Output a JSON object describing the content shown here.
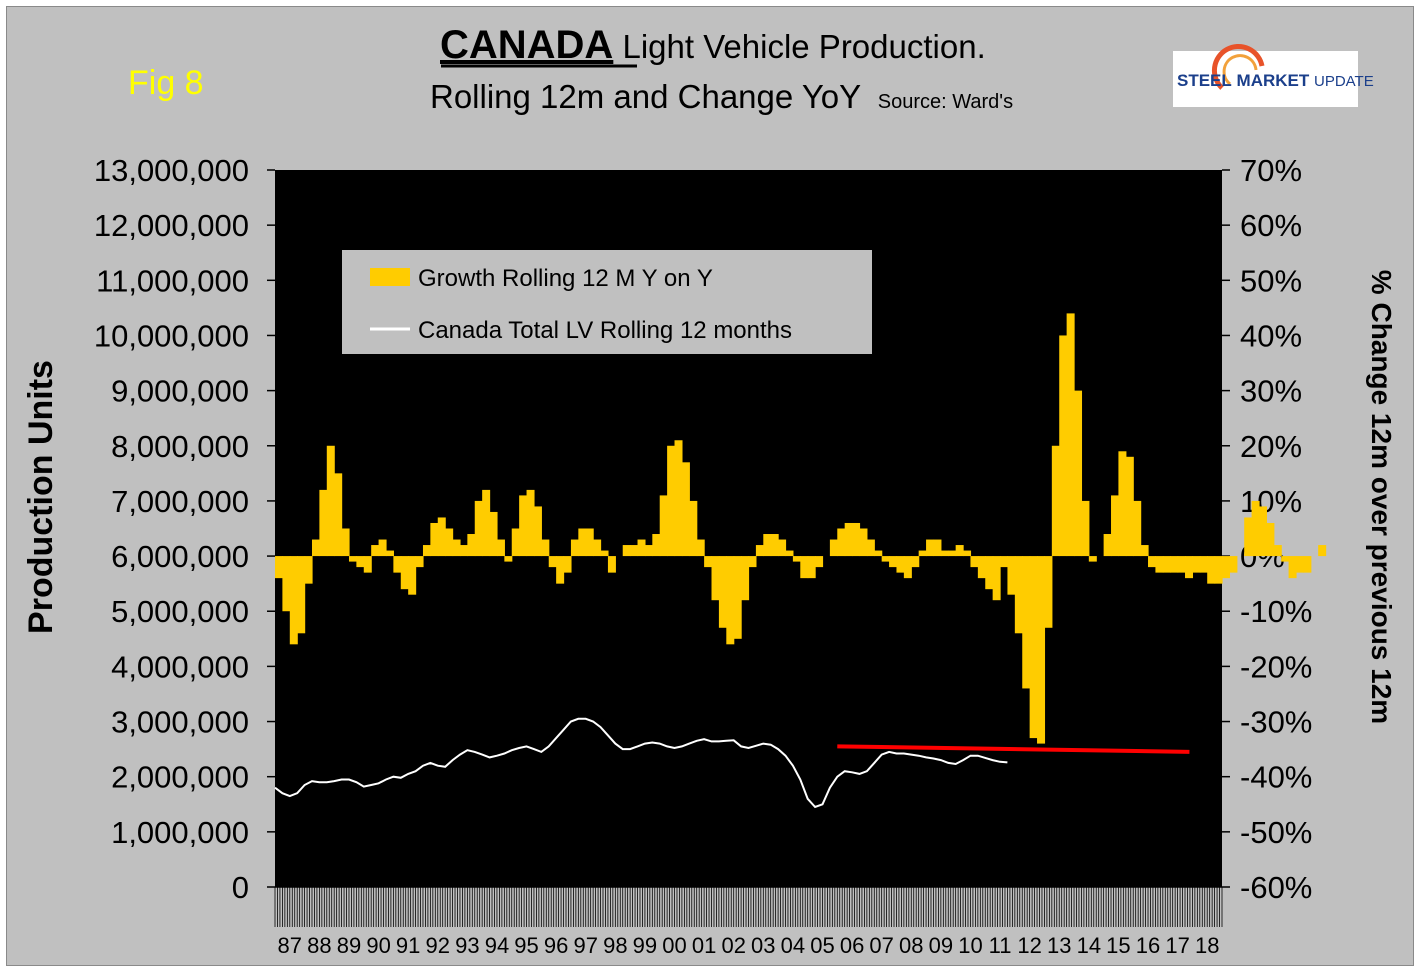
{
  "figure_label": "Fig 8",
  "brand": {
    "steel": "STEEL",
    "market": "MARKET",
    "update": "UPDATE",
    "accent": "#e8532a",
    "navy": "#1b3f8b"
  },
  "chart_data": {
    "type": "bar+line",
    "title_main": "CANADA",
    "title_rest": " Light Vehicle Production.",
    "subtitle": "Rolling 12m and Change YoY",
    "source": "Source: Ward's",
    "ylabel_left": "Production Units",
    "ylabel_right": "% Change 12m over previous 12m",
    "left_axis": {
      "min": 0,
      "max": 13000000,
      "step": 1000000,
      "ticks": [
        "0",
        "1,000,000",
        "2,000,000",
        "3,000,000",
        "4,000,000",
        "5,000,000",
        "6,000,000",
        "7,000,000",
        "8,000,000",
        "9,000,000",
        "10,000,000",
        "11,000,000",
        "12,000,000",
        "13,000,000"
      ]
    },
    "right_axis": {
      "min": -60,
      "max": 70,
      "step": 10,
      "ticks": [
        "-60%",
        "-50%",
        "-40%",
        "-30%",
        "-20%",
        "-10%",
        "0%",
        "10%",
        "20%",
        "30%",
        "40%",
        "50%",
        "60%",
        "70%"
      ]
    },
    "x_categories": [
      "87",
      "88",
      "89",
      "90",
      "91",
      "92",
      "93",
      "94",
      "95",
      "96",
      "97",
      "98",
      "99",
      "00",
      "01",
      "02",
      "03",
      "04",
      "05",
      "06",
      "07",
      "08",
      "09",
      "10",
      "11",
      "12",
      "13",
      "14",
      "15",
      "16",
      "17",
      "18"
    ],
    "legend": [
      {
        "label": "Growth Rolling 12 M Y on Y",
        "color": "#ffcc00"
      },
      {
        "label": "Canada Total LV Rolling 12 months",
        "color": "#ffffff"
      }
    ],
    "growth_series": {
      "name": "Growth Rolling 12 M Y on Y",
      "unit": "%",
      "start": 1987.0,
      "interval_years": 0.25,
      "values": [
        -4,
        -10,
        -16,
        -14,
        -5,
        3,
        12,
        20,
        15,
        5,
        -1,
        -2,
        -3,
        2,
        3,
        1,
        -3,
        -6,
        -7,
        -2,
        2,
        6,
        7,
        5,
        3,
        2,
        4,
        10,
        12,
        8,
        3,
        -1,
        5,
        11,
        12,
        9,
        3,
        -2,
        -5,
        -3,
        3,
        5,
        5,
        3,
        1,
        -3,
        0,
        2,
        2,
        3,
        2,
        4,
        11,
        20,
        21,
        17,
        10,
        3,
        -2,
        -8,
        -13,
        -16,
        -15,
        -8,
        -2,
        2,
        4,
        4,
        3,
        1,
        -1,
        -4,
        -4,
        -2,
        0,
        3,
        5,
        6,
        6,
        5,
        3,
        1,
        -1,
        -2,
        -3,
        -4,
        -2,
        1,
        3,
        3,
        1,
        1,
        2,
        1,
        -2,
        -4,
        -6,
        -8,
        -2,
        -7,
        -14,
        -24,
        -33,
        -34,
        -13,
        20,
        40,
        44,
        30,
        10,
        -1,
        0,
        4,
        11,
        19,
        18,
        10,
        2,
        -2,
        -3,
        -3,
        -3,
        -3,
        -4,
        -3,
        -3,
        -5,
        -5,
        -4,
        -3,
        0,
        7,
        10,
        9,
        6,
        2,
        -1,
        -4,
        -3,
        -3,
        0,
        2
      ],
      "monthly_points": 373
    },
    "production_series": {
      "name": "Canada Total LV Rolling 12 months",
      "unit": "units",
      "start": 1987.0,
      "interval_years": 0.25,
      "values": [
        1800000,
        1700000,
        1650000,
        1700000,
        1850000,
        1920000,
        1900000,
        1900000,
        1920000,
        1950000,
        1950000,
        1900000,
        1820000,
        1850000,
        1880000,
        1950000,
        2000000,
        1980000,
        2050000,
        2100000,
        2200000,
        2250000,
        2200000,
        2180000,
        2300000,
        2400000,
        2480000,
        2450000,
        2400000,
        2350000,
        2380000,
        2420000,
        2480000,
        2520000,
        2550000,
        2500000,
        2450000,
        2550000,
        2700000,
        2850000,
        3000000,
        3050000,
        3050000,
        3000000,
        2900000,
        2750000,
        2600000,
        2500000,
        2500000,
        2550000,
        2600000,
        2620000,
        2600000,
        2550000,
        2520000,
        2550000,
        2600000,
        2650000,
        2680000,
        2640000,
        2640000,
        2650000,
        2660000,
        2550000,
        2520000,
        2560000,
        2600000,
        2580000,
        2500000,
        2380000,
        2200000,
        1950000,
        1600000,
        1450000,
        1500000,
        1800000,
        2000000,
        2100000,
        2080000,
        2050000,
        2100000,
        2250000,
        2400000,
        2450000,
        2420000,
        2420000,
        2400000,
        2380000,
        2350000,
        2330000,
        2300000,
        2250000,
        2230000,
        2300000,
        2380000,
        2380000,
        2340000,
        2300000,
        2270000,
        2260000
      ]
    },
    "trend_line": {
      "color": "#ff0000",
      "from": {
        "x": 2006.0,
        "y": 2550000
      },
      "to": {
        "x": 2017.9,
        "y": 2450000
      }
    }
  }
}
